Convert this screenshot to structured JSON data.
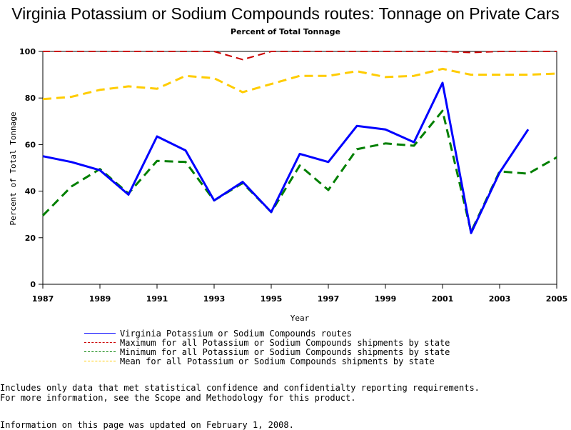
{
  "chart_data": {
    "type": "line",
    "title": "Virginia Potassium or Sodium Compounds routes: Tonnage on Private Cars",
    "subtitle": "Percent of Total Tonnage",
    "xlabel": "Year",
    "ylabel": "Percent of Total Tonnage",
    "xlim": [
      1987,
      2005
    ],
    "ylim": [
      0,
      100
    ],
    "x_ticks": [
      "1987",
      "1989",
      "1991",
      "1993",
      "1995",
      "1997",
      "1999",
      "2001",
      "2003",
      "2005"
    ],
    "y_ticks": [
      "0",
      "20",
      "40",
      "60",
      "80",
      "100"
    ],
    "x": [
      1987,
      1988,
      1989,
      1990,
      1991,
      1992,
      1993,
      1994,
      1995,
      1996,
      1997,
      1998,
      1999,
      2000,
      2001,
      2002,
      2003,
      2004,
      2005
    ],
    "series": [
      {
        "name": "Virginia Potassium or Sodium Compounds routes",
        "color": "#0000ff",
        "dash": "solid",
        "values": [
          55,
          52.5,
          49,
          38.5,
          63.5,
          57.5,
          36,
          44,
          31,
          56,
          52.5,
          68,
          66.5,
          61,
          86.5,
          22,
          48,
          66.5,
          null
        ]
      },
      {
        "name": "Maximum for all Potassium or Sodium Compounds shipments by state",
        "color": "#cc0000",
        "dash": "dashed",
        "values": [
          100,
          100,
          100,
          100,
          100,
          100,
          100,
          96.5,
          100,
          100,
          100,
          100,
          100,
          100,
          100,
          99.5,
          100,
          100,
          100
        ]
      },
      {
        "name": "Minimum for all Potassium or Sodium Compounds shipments by state",
        "color": "#007f00",
        "dash": "dashed",
        "values": [
          29.5,
          42,
          49.5,
          39,
          53,
          52.5,
          36,
          43.5,
          31,
          51,
          40.5,
          58,
          60.5,
          59.5,
          74.5,
          22.5,
          48.5,
          47.5,
          54.5
        ]
      },
      {
        "name": "Mean for all Potassium or Sodium Compounds shipments by state",
        "color": "#ffcc00",
        "dash": "dashed",
        "values": [
          79.5,
          80.5,
          83.5,
          85,
          84,
          89.5,
          88.5,
          82.5,
          86,
          89.5,
          89.5,
          91.5,
          89,
          89.5,
          92.5,
          90,
          90,
          90,
          90.5
        ]
      }
    ],
    "legend_position": "bottom",
    "grid": false
  },
  "notes": [
    "Includes only data that met statistical confidence and confidentialty reporting requirements.",
    "For more information, see the Scope and Methodology for this product."
  ],
  "updated": "Information on this page was updated on February 1, 2008."
}
